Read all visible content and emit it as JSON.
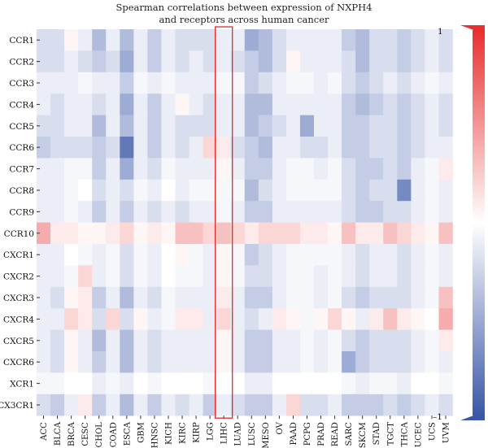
{
  "chart_data": {
    "type": "heatmap",
    "title": "Spearman correlations between expression of NXPH4 and receptors across human cancer",
    "title_lines": [
      "Spearman correlations between expression of NXPH4",
      "and receptors across human cancer"
    ],
    "rows": [
      "CCR1",
      "CCR2",
      "CCR3",
      "CCR4",
      "CCR5",
      "CCR6",
      "CCR7",
      "CCR8",
      "CCR9",
      "CCR10",
      "CXCR1",
      "CXCR2",
      "CXCR3",
      "CXCR4",
      "CXCR5",
      "CXCR6",
      "XCR1",
      "CX3CR1"
    ],
    "columns": [
      "ACC",
      "BLCA",
      "BRCA",
      "CESC",
      "CHOL",
      "COAD",
      "ESCA",
      "GBM",
      "HNSC",
      "KICH",
      "KIRC",
      "KIRP",
      "LGG",
      "LIHC",
      "LUAD",
      "LUSC",
      "MESO",
      "OV",
      "PAAD",
      "PCPG",
      "PRAD",
      "READ",
      "SARC",
      "SKCM",
      "STAD",
      "TGCT",
      "THCA",
      "UCEC",
      "UCS",
      "UVM"
    ],
    "values": [
      [
        -0.2,
        -0.2,
        0.05,
        -0.1,
        -0.4,
        -0.1,
        -0.4,
        -0.1,
        -0.3,
        -0.1,
        -0.2,
        -0.2,
        -0.2,
        -0.1,
        -0.1,
        -0.5,
        -0.4,
        -0.2,
        -0.1,
        -0.1,
        -0.1,
        -0.1,
        -0.3,
        -0.4,
        -0.2,
        -0.2,
        -0.3,
        -0.2,
        -0.1,
        -0.2
      ],
      [
        -0.2,
        -0.2,
        -0.1,
        -0.2,
        -0.3,
        -0.2,
        -0.5,
        -0.1,
        -0.3,
        -0.1,
        -0.2,
        -0.1,
        -0.2,
        -0.1,
        -0.2,
        -0.3,
        -0.4,
        -0.2,
        0.05,
        -0.1,
        -0.1,
        -0.1,
        -0.2,
        -0.4,
        -0.2,
        -0.2,
        -0.3,
        -0.2,
        -0.1,
        -0.2
      ],
      [
        -0.1,
        -0.1,
        -0.1,
        -0.05,
        -0.1,
        -0.1,
        -0.3,
        -0.05,
        -0.1,
        -0.05,
        -0.1,
        -0.1,
        -0.1,
        -0.05,
        -0.05,
        -0.3,
        -0.2,
        -0.1,
        -0.05,
        -0.05,
        -0.1,
        -0.05,
        -0.2,
        -0.3,
        -0.2,
        -0.1,
        -0.2,
        -0.1,
        -0.05,
        -0.1
      ],
      [
        -0.1,
        -0.2,
        -0.1,
        -0.1,
        -0.2,
        -0.1,
        -0.5,
        -0.1,
        -0.3,
        -0.1,
        0.05,
        -0.1,
        -0.2,
        -0.1,
        -0.1,
        -0.4,
        -0.4,
        -0.1,
        -0.1,
        -0.1,
        -0.1,
        -0.1,
        -0.3,
        -0.4,
        -0.3,
        -0.2,
        -0.3,
        -0.2,
        -0.1,
        -0.2
      ],
      [
        -0.2,
        -0.2,
        -0.1,
        -0.1,
        -0.4,
        -0.1,
        -0.4,
        -0.1,
        -0.3,
        -0.1,
        -0.2,
        -0.2,
        -0.2,
        -0.1,
        -0.1,
        -0.4,
        -0.3,
        -0.2,
        -0.1,
        -0.5,
        -0.1,
        -0.1,
        -0.3,
        -0.3,
        -0.2,
        -0.2,
        -0.3,
        -0.2,
        -0.1,
        -0.2
      ],
      [
        -0.3,
        -0.2,
        -0.2,
        -0.2,
        -0.3,
        -0.2,
        -0.8,
        -0.1,
        -0.3,
        -0.1,
        -0.2,
        -0.1,
        0.2,
        0.1,
        -0.2,
        -0.3,
        -0.4,
        -0.1,
        -0.1,
        -0.2,
        -0.2,
        -0.1,
        -0.3,
        -0.3,
        -0.2,
        -0.2,
        -0.3,
        -0.2,
        -0.1,
        -0.1
      ],
      [
        -0.1,
        -0.1,
        -0.05,
        -0.05,
        -0.3,
        -0.1,
        -0.5,
        -0.1,
        -0.2,
        -0.05,
        -0.1,
        -0.1,
        -0.1,
        0.05,
        -0.1,
        -0.3,
        -0.3,
        -0.1,
        -0.05,
        -0.05,
        -0.1,
        -0.05,
        -0.2,
        -0.3,
        -0.3,
        -0.2,
        -0.3,
        -0.1,
        -0.05,
        0.1
      ],
      [
        -0.1,
        -0.1,
        -0.05,
        0.0,
        -0.2,
        -0.1,
        -0.2,
        -0.05,
        -0.1,
        0.0,
        -0.1,
        -0.05,
        -0.05,
        -0.05,
        -0.05,
        -0.4,
        -0.2,
        -0.1,
        -0.05,
        -0.05,
        -0.05,
        -0.05,
        -0.2,
        -0.3,
        -0.2,
        -0.2,
        -0.7,
        -0.1,
        -0.05,
        -0.1
      ],
      [
        -0.1,
        -0.1,
        -0.05,
        -0.1,
        -0.3,
        -0.1,
        -0.3,
        -0.1,
        -0.2,
        -0.1,
        -0.2,
        -0.1,
        -0.1,
        -0.05,
        -0.1,
        -0.3,
        -0.3,
        -0.1,
        -0.1,
        -0.1,
        -0.1,
        -0.1,
        -0.2,
        -0.3,
        -0.3,
        -0.2,
        -0.2,
        -0.1,
        -0.05,
        -0.1
      ],
      [
        0.4,
        0.1,
        0.1,
        0.05,
        0.05,
        0.1,
        0.2,
        0.05,
        0.1,
        0.05,
        0.3,
        0.3,
        0.2,
        0.3,
        0.2,
        0.1,
        0.2,
        0.2,
        0.2,
        0.1,
        0.1,
        0.05,
        0.3,
        0.1,
        0.1,
        0.3,
        0.2,
        0.1,
        0.05,
        0.3
      ],
      [
        -0.1,
        -0.1,
        0.0,
        -0.05,
        -0.1,
        -0.05,
        -0.2,
        -0.05,
        -0.1,
        0.0,
        0.05,
        -0.05,
        -0.1,
        0.05,
        -0.05,
        -0.3,
        -0.2,
        -0.1,
        -0.05,
        -0.05,
        -0.05,
        -0.05,
        -0.1,
        -0.2,
        -0.1,
        -0.1,
        -0.2,
        -0.1,
        -0.05,
        -0.1
      ],
      [
        -0.1,
        -0.1,
        -0.05,
        0.2,
        -0.1,
        -0.05,
        -0.2,
        -0.05,
        -0.1,
        0.0,
        -0.05,
        -0.05,
        -0.1,
        0.05,
        -0.05,
        -0.2,
        -0.2,
        -0.1,
        -0.05,
        -0.05,
        -0.1,
        -0.05,
        -0.1,
        -0.2,
        -0.1,
        -0.1,
        -0.2,
        -0.1,
        -0.05,
        -0.1
      ],
      [
        -0.1,
        -0.2,
        0.05,
        0.1,
        -0.3,
        -0.1,
        -0.4,
        -0.1,
        -0.2,
        -0.05,
        -0.1,
        -0.1,
        -0.1,
        0.1,
        -0.1,
        -0.3,
        -0.3,
        -0.1,
        -0.05,
        -0.05,
        -0.1,
        -0.05,
        -0.2,
        -0.3,
        -0.2,
        -0.2,
        -0.2,
        -0.1,
        -0.05,
        0.3
      ],
      [
        -0.1,
        -0.1,
        0.2,
        0.1,
        -0.2,
        0.2,
        -0.2,
        0.05,
        -0.1,
        -0.05,
        0.1,
        0.1,
        -0.1,
        0.2,
        -0.1,
        -0.2,
        -0.1,
        0.1,
        0.05,
        -0.05,
        0.05,
        0.2,
        0.05,
        -0.1,
        0.1,
        0.3,
        0.1,
        0.05,
        0.0,
        0.4
      ],
      [
        -0.1,
        -0.2,
        0.05,
        -0.1,
        -0.4,
        -0.1,
        -0.4,
        -0.1,
        -0.2,
        -0.1,
        -0.1,
        -0.1,
        -0.1,
        0.05,
        -0.1,
        -0.3,
        -0.3,
        -0.1,
        -0.1,
        -0.05,
        -0.1,
        -0.05,
        -0.2,
        -0.3,
        -0.2,
        -0.2,
        -0.2,
        -0.1,
        -0.05,
        0.1
      ],
      [
        -0.1,
        -0.2,
        0.05,
        -0.1,
        -0.3,
        -0.1,
        -0.4,
        -0.1,
        -0.2,
        -0.1,
        -0.1,
        -0.1,
        -0.1,
        0.05,
        -0.1,
        -0.3,
        -0.3,
        -0.1,
        -0.1,
        -0.05,
        -0.1,
        -0.05,
        -0.5,
        -0.3,
        -0.2,
        -0.2,
        -0.2,
        -0.1,
        -0.05,
        -0.1
      ],
      [
        -0.05,
        -0.05,
        0.0,
        0.0,
        -0.1,
        -0.05,
        -0.1,
        0.0,
        -0.05,
        0.0,
        0.0,
        0.0,
        -0.05,
        0.0,
        0.0,
        -0.1,
        -0.1,
        0.0,
        0.0,
        0.0,
        0.0,
        0.0,
        -0.05,
        -0.1,
        -0.05,
        -0.05,
        -0.1,
        0.0,
        0.0,
        -0.05
      ],
      [
        -0.2,
        -0.3,
        -0.1,
        0.1,
        -0.3,
        -0.1,
        -0.4,
        -0.1,
        -0.3,
        -0.1,
        -0.2,
        -0.1,
        -0.3,
        -0.1,
        -0.2,
        -0.3,
        -0.3,
        -0.1,
        0.2,
        -0.2,
        -0.2,
        -0.1,
        -0.3,
        -0.3,
        -0.3,
        -0.2,
        -0.3,
        -0.2,
        -0.1,
        -0.2
      ]
    ],
    "highlight_column": "LIHC",
    "colorbar": {
      "max_label": "1",
      "min_label": "–1",
      "range": [
        -1,
        1
      ]
    },
    "colors": {
      "negative": "#3b58a8",
      "zero": "#ffffff",
      "positive": "#e8302f",
      "highlight": "#e02a2a"
    }
  }
}
